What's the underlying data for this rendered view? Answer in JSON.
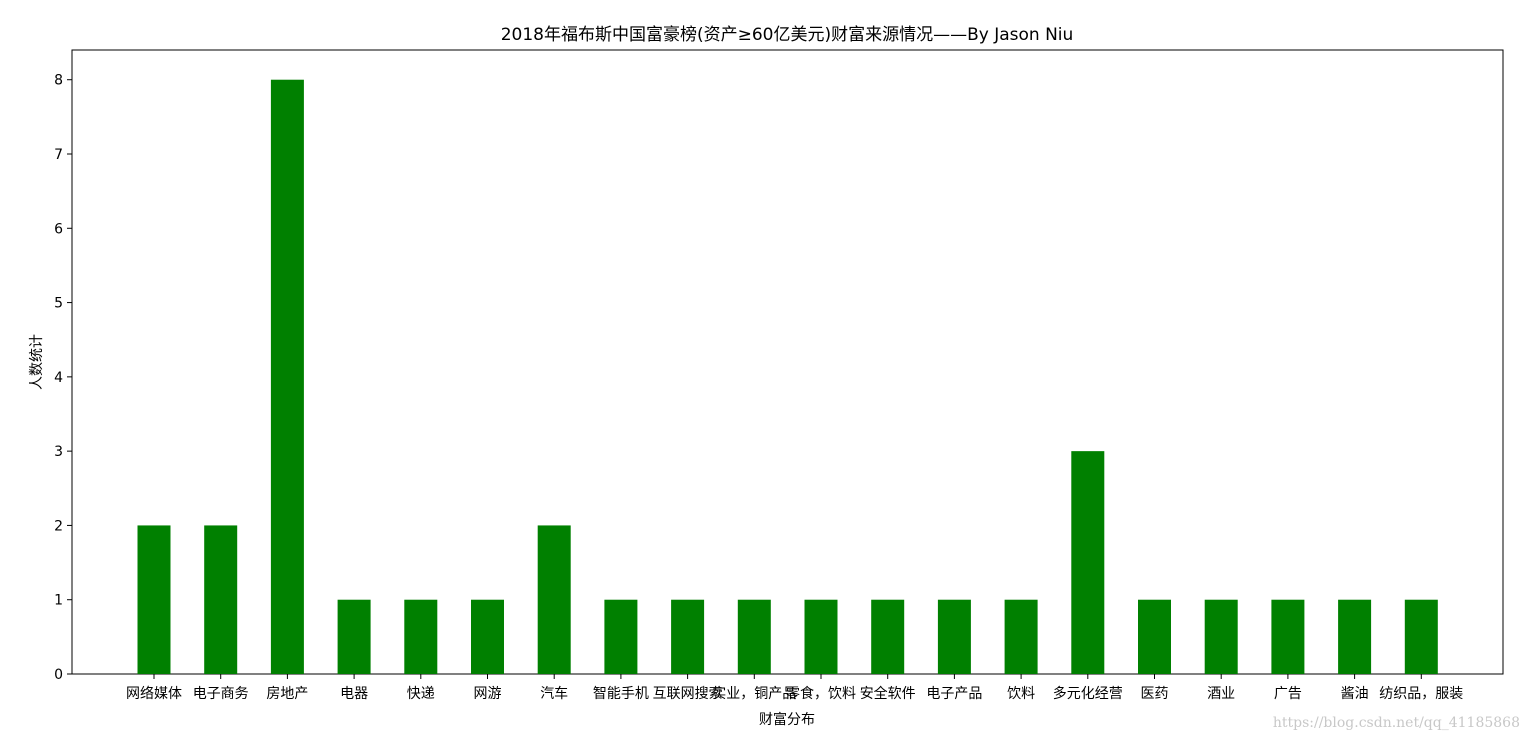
{
  "chart_data": {
    "type": "bar",
    "title": "2018年福布斯中国富豪榜(资产≥60亿美元)财富来源情况——By Jason Niu",
    "xlabel": "财富分布",
    "ylabel": "人数统计",
    "categories": [
      "网络媒体",
      "电子商务",
      "房地产",
      "电器",
      "快递",
      "网游",
      "汽车",
      "智能手机",
      "互联网搜索",
      "实业，铜产品",
      "零食，饮料",
      "安全软件",
      "电子产品",
      "饮料",
      "多元化经营",
      "医药",
      "酒业",
      "广告",
      "酱油",
      "纺织品，服装"
    ],
    "values": [
      2,
      2,
      8,
      1,
      1,
      1,
      2,
      1,
      1,
      1,
      1,
      1,
      1,
      1,
      3,
      1,
      1,
      1,
      1,
      1
    ],
    "ylim": [
      0,
      8.4
    ],
    "yticks": [
      0,
      1,
      2,
      3,
      4,
      5,
      6,
      7,
      8
    ],
    "bar_color": "#008000",
    "grid": false
  },
  "watermark": "https://blog.csdn.net/qq_41185868"
}
